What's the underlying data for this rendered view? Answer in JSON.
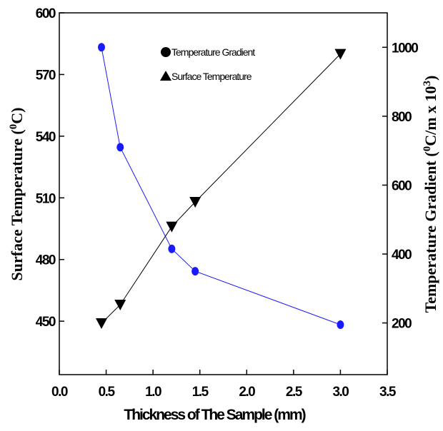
{
  "chart_data": {
    "type": "line",
    "xlabel": "Thickness of The Sample (mm)",
    "ylabel_left": "Surface Temperature (",
    "ylabel_left_sup": "0",
    "ylabel_left_end": "C)",
    "ylabel_right": "Temperature Gradient (",
    "ylabel_right_sup": "0",
    "ylabel_right_mid": "C/m x 10",
    "ylabel_right_sup2": "3",
    "ylabel_right_end": ")",
    "xlim": [
      0.0,
      3.5
    ],
    "ylim_left": [
      424,
      600
    ],
    "ylim_right": [
      50,
      1100
    ],
    "xticks": [
      "0.0",
      "0.5",
      "1.0",
      "1.5",
      "2.0",
      "2.5",
      "3.0",
      "3.5"
    ],
    "xtick_values": [
      0.0,
      0.5,
      1.0,
      1.5,
      2.0,
      2.5,
      3.0,
      3.5
    ],
    "yticks_left": [
      "450",
      "480",
      "510",
      "540",
      "570",
      "600"
    ],
    "ytick_values_left": [
      450,
      480,
      510,
      540,
      570,
      600
    ],
    "yticks_right": [
      "200",
      "400",
      "600",
      "800",
      "1000"
    ],
    "ytick_values_right": [
      200,
      400,
      600,
      800,
      1000
    ],
    "legend": [
      {
        "label": "Temperature Gradient",
        "marker": "circle"
      },
      {
        "label": "Surface Temperature",
        "marker": "triangle"
      }
    ],
    "legend_position": "top-center",
    "series": [
      {
        "name": "Temperature Gradient",
        "axis": "right",
        "color": "#1a1aff",
        "marker": "circle",
        "x": [
          0.45,
          0.65,
          1.2,
          1.45,
          3.0
        ],
        "y": [
          1000,
          710,
          415,
          350,
          195
        ]
      },
      {
        "name": "Surface Temperature",
        "axis": "left",
        "color": "#000000",
        "marker": "triangle-down",
        "x": [
          0.45,
          0.65,
          1.2,
          1.45,
          3.0
        ],
        "y": [
          449,
          458,
          496,
          508,
          580
        ]
      }
    ]
  }
}
